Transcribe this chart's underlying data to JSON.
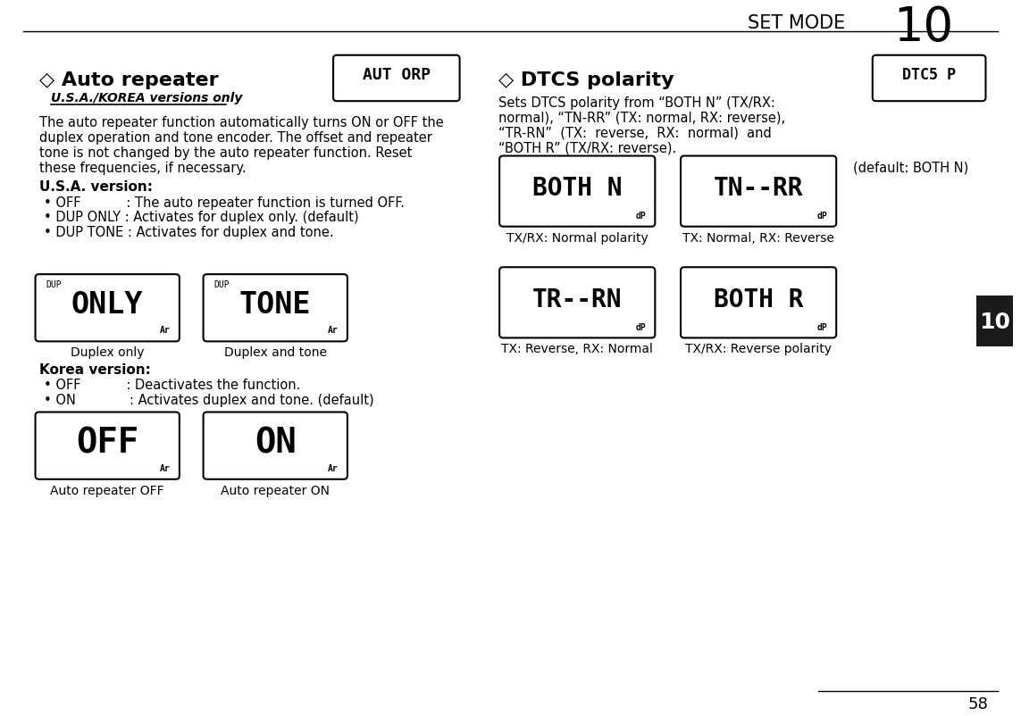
{
  "bg_color": "#ffffff",
  "page_num": "58",
  "header_text": "SET MODE",
  "header_num": "10",
  "section_tab_color": "#1a1a1a",
  "section_tab_text": "10",
  "left_section": {
    "title": "◇ Auto repeater",
    "subtitle": "U.S.A./KOREA versions only",
    "body_lines": [
      "The auto repeater function automatically turns ON or OFF the",
      "duplex operation and tone encoder. The offset and repeater",
      "tone is not changed by the auto repeater function. Reset",
      "these frequencies, if necessary."
    ],
    "usa_title": "U.S.A. version:",
    "usa_items": [
      "• OFF           : The auto repeater function is turned OFF.",
      "• DUP ONLY : Activates for duplex only. (default)",
      "• DUP TONE : Activates for duplex and tone."
    ],
    "korea_title": "Korea version:",
    "korea_items": [
      "• OFF           : Deactivates the function.",
      "• ON             : Activates duplex and tone. (default)"
    ],
    "display1_text": "ONLY",
    "display1_small": "DUP",
    "display1_ar": "Ar",
    "display1_label": "Duplex only",
    "display2_text": "TONE",
    "display2_small": "DUP",
    "display2_ar": "Ar",
    "display2_label": "Duplex and tone",
    "display3_text": "OFF",
    "display3_ar": "Ar",
    "display3_label": "Auto repeater OFF",
    "display4_text": "ON",
    "display4_ar": "Ar",
    "display4_label": "Auto repeater ON"
  },
  "right_section": {
    "title": "◇ DTCS polarity",
    "body_lines": [
      "Sets DTCS polarity from “BOTH N” (TX/RX:",
      "normal), “TN-RR” (TX: normal, RX: reverse),",
      "“TR-RN”  (TX:  reverse,  RX:  normal)  and",
      "“BOTH R” (TX/RX: reverse)."
    ],
    "default_text": "(default: BOTH N)",
    "display1_text": "BOTH N",
    "display1_small": "dP",
    "display1_label": "TX/RX: Normal polarity",
    "display2_text": "TN--RR",
    "display2_small": "dP",
    "display2_label": "TX: Normal, RX: Reverse",
    "display3_text": "TR--RN",
    "display3_small": "dP",
    "display3_label": "TX: Reverse, RX: Normal",
    "display4_text": "BOTH R",
    "display4_small": "dP",
    "display4_label": "TX/RX: Reverse polarity"
  }
}
